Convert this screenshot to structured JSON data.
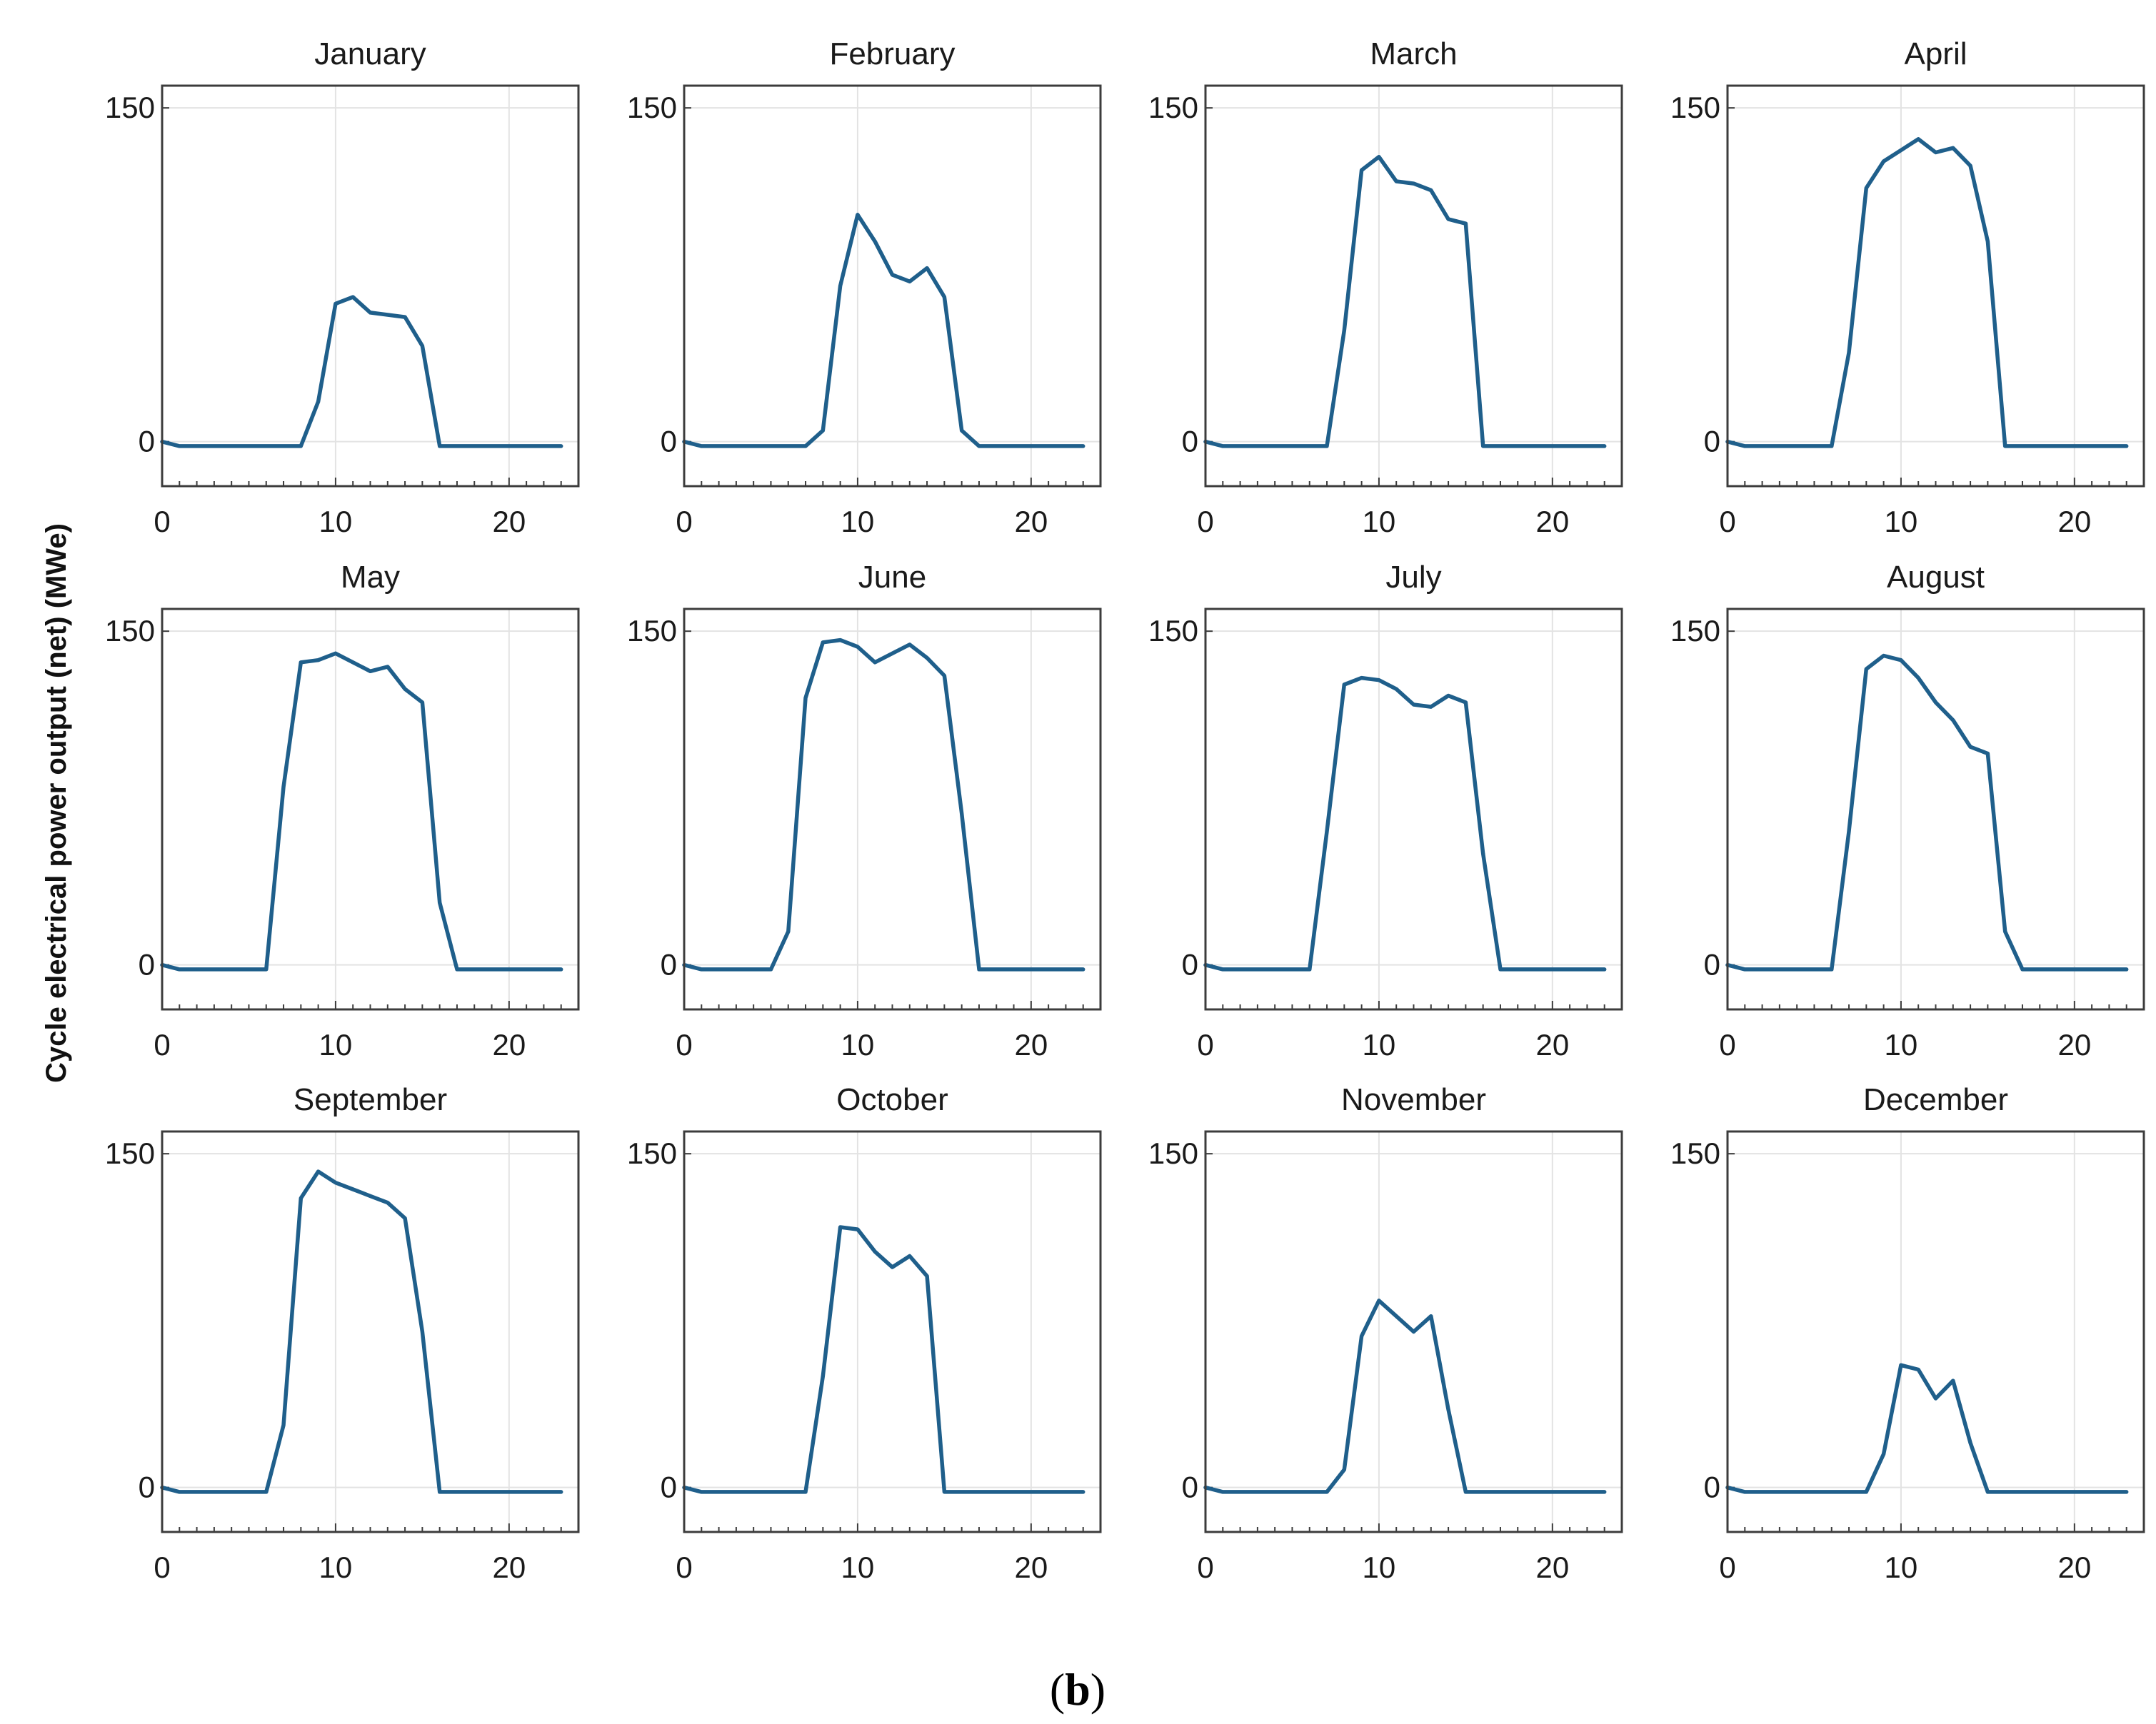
{
  "figure": {
    "ylabel": "Cycle electrical power output (net) (MWe)",
    "caption_open": "(",
    "caption_letter": "b",
    "caption_close": ")",
    "line_color": "#1f5f8b"
  },
  "chart_data": [
    {
      "type": "line",
      "title": "January",
      "x": [
        0,
        1,
        2,
        3,
        4,
        5,
        6,
        7,
        8,
        9,
        10,
        11,
        12,
        13,
        14,
        15,
        16,
        17,
        18,
        19,
        20,
        21,
        22,
        23
      ],
      "values": [
        0,
        -2,
        -2,
        -2,
        -2,
        -2,
        -2,
        -2,
        -2,
        18,
        62,
        65,
        58,
        57,
        56,
        43,
        -2,
        -2,
        -2,
        -2,
        -2,
        -2,
        -2,
        -2
      ],
      "xlim": [
        0,
        24
      ],
      "ylim": [
        -20,
        160
      ],
      "xticks": [
        "0",
        "10",
        "20"
      ],
      "yticks": [
        "0",
        "150"
      ]
    },
    {
      "type": "line",
      "title": "February",
      "x": [
        0,
        1,
        2,
        3,
        4,
        5,
        6,
        7,
        8,
        9,
        10,
        11,
        12,
        13,
        14,
        15,
        16,
        17,
        18,
        19,
        20,
        21,
        22,
        23
      ],
      "values": [
        0,
        -2,
        -2,
        -2,
        -2,
        -2,
        -2,
        -2,
        5,
        70,
        102,
        90,
        75,
        72,
        78,
        65,
        5,
        -2,
        -2,
        -2,
        -2,
        -2,
        -2,
        -2
      ],
      "xlim": [
        0,
        24
      ],
      "ylim": [
        -20,
        160
      ],
      "xticks": [
        "0",
        "10",
        "20"
      ],
      "yticks": [
        "0",
        "150"
      ]
    },
    {
      "type": "line",
      "title": "March",
      "x": [
        0,
        1,
        2,
        3,
        4,
        5,
        6,
        7,
        8,
        9,
        10,
        11,
        12,
        13,
        14,
        15,
        16,
        17,
        18,
        19,
        20,
        21,
        22,
        23
      ],
      "values": [
        0,
        -2,
        -2,
        -2,
        -2,
        -2,
        -2,
        -2,
        50,
        122,
        128,
        117,
        116,
        113,
        100,
        98,
        -2,
        -2,
        -2,
        -2,
        -2,
        -2,
        -2,
        -2
      ],
      "xlim": [
        0,
        24
      ],
      "ylim": [
        -20,
        160
      ],
      "xticks": [
        "0",
        "10",
        "20"
      ],
      "yticks": [
        "0",
        "150"
      ]
    },
    {
      "type": "line",
      "title": "April",
      "x": [
        0,
        1,
        2,
        3,
        4,
        5,
        6,
        7,
        8,
        9,
        10,
        11,
        12,
        13,
        14,
        15,
        16,
        17,
        18,
        19,
        20,
        21,
        22,
        23
      ],
      "values": [
        0,
        -2,
        -2,
        -2,
        -2,
        -2,
        -2,
        40,
        114,
        126,
        131,
        136,
        130,
        132,
        124,
        90,
        -2,
        -2,
        -2,
        -2,
        -2,
        -2,
        -2,
        -2
      ],
      "xlim": [
        0,
        24
      ],
      "ylim": [
        -20,
        160
      ],
      "xticks": [
        "0",
        "10",
        "20"
      ],
      "yticks": [
        "0",
        "150"
      ]
    },
    {
      "type": "line",
      "title": "May",
      "x": [
        0,
        1,
        2,
        3,
        4,
        5,
        6,
        7,
        8,
        9,
        10,
        11,
        12,
        13,
        14,
        15,
        16,
        17,
        18,
        19,
        20,
        21,
        22,
        23
      ],
      "values": [
        0,
        -2,
        -2,
        -2,
        -2,
        -2,
        -2,
        80,
        136,
        137,
        140,
        136,
        132,
        134,
        124,
        118,
        28,
        -2,
        -2,
        -2,
        -2,
        -2,
        -2,
        -2
      ],
      "xlim": [
        0,
        24
      ],
      "ylim": [
        -20,
        160
      ],
      "xticks": [
        "0",
        "10",
        "20"
      ],
      "yticks": [
        "0",
        "150"
      ]
    },
    {
      "type": "line",
      "title": "June",
      "x": [
        0,
        1,
        2,
        3,
        4,
        5,
        6,
        7,
        8,
        9,
        10,
        11,
        12,
        13,
        14,
        15,
        16,
        17,
        18,
        19,
        20,
        21,
        22,
        23
      ],
      "values": [
        0,
        -2,
        -2,
        -2,
        -2,
        -2,
        15,
        120,
        145,
        146,
        143,
        136,
        140,
        144,
        138,
        130,
        68,
        -2,
        -2,
        -2,
        -2,
        -2,
        -2,
        -2
      ],
      "xlim": [
        0,
        24
      ],
      "ylim": [
        -20,
        160
      ],
      "xticks": [
        "0",
        "10",
        "20"
      ],
      "yticks": [
        "0",
        "150"
      ]
    },
    {
      "type": "line",
      "title": "July",
      "x": [
        0,
        1,
        2,
        3,
        4,
        5,
        6,
        7,
        8,
        9,
        10,
        11,
        12,
        13,
        14,
        15,
        16,
        17,
        18,
        19,
        20,
        21,
        22,
        23
      ],
      "values": [
        0,
        -2,
        -2,
        -2,
        -2,
        -2,
        -2,
        60,
        126,
        129,
        128,
        124,
        117,
        116,
        121,
        118,
        50,
        -2,
        -2,
        -2,
        -2,
        -2,
        -2,
        -2
      ],
      "xlim": [
        0,
        24
      ],
      "ylim": [
        -20,
        160
      ],
      "xticks": [
        "0",
        "10",
        "20"
      ],
      "yticks": [
        "0",
        "150"
      ]
    },
    {
      "type": "line",
      "title": "August",
      "x": [
        0,
        1,
        2,
        3,
        4,
        5,
        6,
        7,
        8,
        9,
        10,
        11,
        12,
        13,
        14,
        15,
        16,
        17,
        18,
        19,
        20,
        21,
        22,
        23
      ],
      "values": [
        0,
        -2,
        -2,
        -2,
        -2,
        -2,
        -2,
        60,
        133,
        139,
        137,
        129,
        118,
        110,
        98,
        95,
        15,
        -2,
        -2,
        -2,
        -2,
        -2,
        -2,
        -2
      ],
      "xlim": [
        0,
        24
      ],
      "ylim": [
        -20,
        160
      ],
      "xticks": [
        "0",
        "10",
        "20"
      ],
      "yticks": [
        "0",
        "150"
      ]
    },
    {
      "type": "line",
      "title": "September",
      "x": [
        0,
        1,
        2,
        3,
        4,
        5,
        6,
        7,
        8,
        9,
        10,
        11,
        12,
        13,
        14,
        15,
        16,
        17,
        18,
        19,
        20,
        21,
        22,
        23
      ],
      "values": [
        0,
        -2,
        -2,
        -2,
        -2,
        -2,
        -2,
        28,
        130,
        142,
        137,
        134,
        131,
        128,
        121,
        70,
        -2,
        -2,
        -2,
        -2,
        -2,
        -2,
        -2,
        -2
      ],
      "xlim": [
        0,
        24
      ],
      "ylim": [
        -20,
        160
      ],
      "xticks": [
        "0",
        "10",
        "20"
      ],
      "yticks": [
        "0",
        "150"
      ]
    },
    {
      "type": "line",
      "title": "October",
      "x": [
        0,
        1,
        2,
        3,
        4,
        5,
        6,
        7,
        8,
        9,
        10,
        11,
        12,
        13,
        14,
        15,
        16,
        17,
        18,
        19,
        20,
        21,
        22,
        23
      ],
      "values": [
        0,
        -2,
        -2,
        -2,
        -2,
        -2,
        -2,
        -2,
        50,
        117,
        116,
        106,
        99,
        104,
        95,
        -2,
        -2,
        -2,
        -2,
        -2,
        -2,
        -2,
        -2,
        -2
      ],
      "xlim": [
        0,
        24
      ],
      "ylim": [
        -20,
        160
      ],
      "xticks": [
        "0",
        "10",
        "20"
      ],
      "yticks": [
        "0",
        "150"
      ]
    },
    {
      "type": "line",
      "title": "November",
      "x": [
        0,
        1,
        2,
        3,
        4,
        5,
        6,
        7,
        8,
        9,
        10,
        11,
        12,
        13,
        14,
        15,
        16,
        17,
        18,
        19,
        20,
        21,
        22,
        23
      ],
      "values": [
        0,
        -2,
        -2,
        -2,
        -2,
        -2,
        -2,
        -2,
        8,
        68,
        84,
        77,
        70,
        77,
        35,
        -2,
        -2,
        -2,
        -2,
        -2,
        -2,
        -2,
        -2,
        -2
      ],
      "xlim": [
        0,
        24
      ],
      "ylim": [
        -20,
        160
      ],
      "xticks": [
        "0",
        "10",
        "20"
      ],
      "yticks": [
        "0",
        "150"
      ]
    },
    {
      "type": "line",
      "title": "December",
      "x": [
        0,
        1,
        2,
        3,
        4,
        5,
        6,
        7,
        8,
        9,
        10,
        11,
        12,
        13,
        14,
        15,
        16,
        17,
        18,
        19,
        20,
        21,
        22,
        23
      ],
      "values": [
        0,
        -2,
        -2,
        -2,
        -2,
        -2,
        -2,
        -2,
        -2,
        15,
        55,
        53,
        40,
        48,
        20,
        -2,
        -2,
        -2,
        -2,
        -2,
        -2,
        -2,
        -2,
        -2
      ],
      "xlim": [
        0,
        24
      ],
      "ylim": [
        -20,
        160
      ],
      "xticks": [
        "0",
        "10",
        "20"
      ],
      "yticks": [
        "0",
        "150"
      ]
    }
  ]
}
